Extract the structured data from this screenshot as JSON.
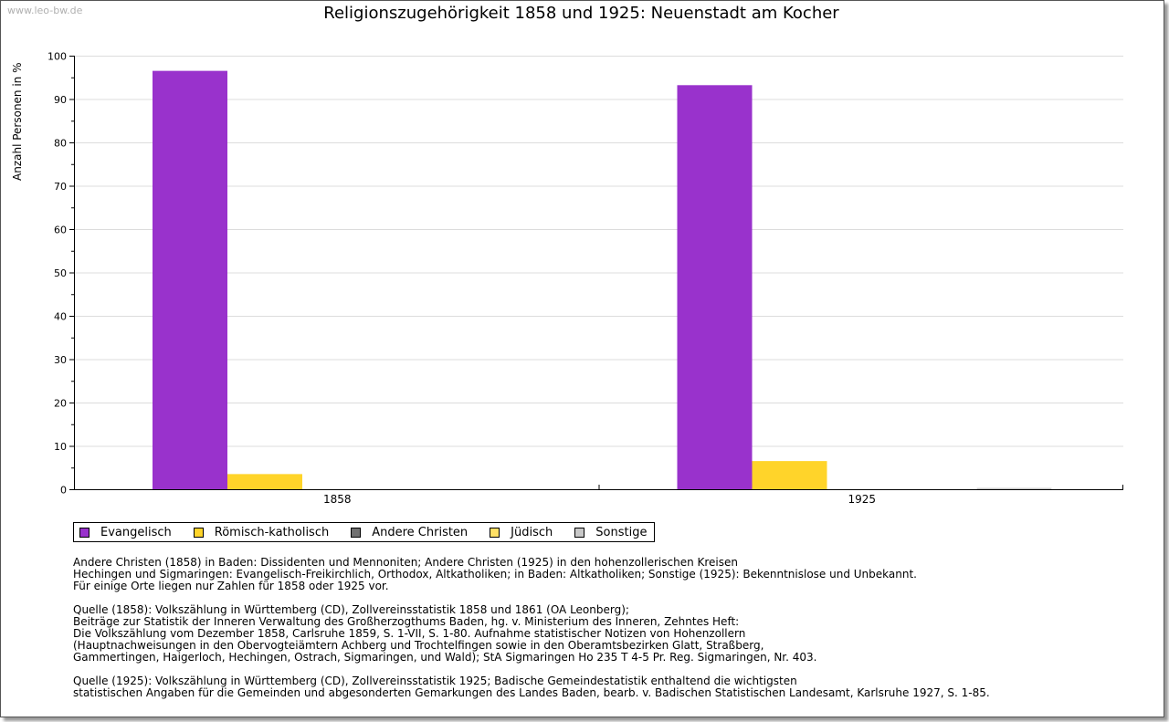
{
  "watermark": "www.leo-bw.de",
  "chart_data": {
    "type": "bar",
    "title": "Religionszugehörigkeit 1858 und 1925: Neuenstadt am Kocher",
    "xlabel": "",
    "ylabel": "Anzahl Personen in %",
    "ylim": [
      0,
      100
    ],
    "yticks": [
      0,
      10,
      20,
      30,
      40,
      50,
      60,
      70,
      80,
      90,
      100
    ],
    "categories": [
      "1858",
      "1925"
    ],
    "grid": true,
    "legend_position": "bottom",
    "series": [
      {
        "name": "Evangelisch",
        "color": "#9932cc",
        "values": [
          96.5,
          93.2
        ]
      },
      {
        "name": "Römisch-katholisch",
        "color": "#ffd42a",
        "values": [
          3.5,
          6.5
        ]
      },
      {
        "name": "Andere Christen",
        "color": "#707070",
        "values": [
          0,
          0
        ]
      },
      {
        "name": "Jüdisch",
        "color": "#ffe066",
        "values": [
          0,
          0
        ]
      },
      {
        "name": "Sonstige",
        "color": "#c8c8c8",
        "values": [
          0,
          0.3
        ]
      }
    ]
  },
  "notes": [
    [
      "Andere Christen (1858) in Baden: Dissidenten und Mennoniten; Andere Christen (1925) in den hohenzollerischen Kreisen",
      "Hechingen und Sigmaringen: Evangelisch-Freikirchlich, Orthodox, Altkatholiken; in Baden: Altkatholiken; Sonstige (1925): Bekenntnislose und Unbekannt.",
      "Für einige Orte liegen nur Zahlen für 1858 oder 1925 vor."
    ],
    [
      "Quelle (1858): Volkszählung in Württemberg (CD), Zollvereinsstatistik 1858 und 1861 (OA Leonberg);",
      "Beiträge zur Statistik der Inneren Verwaltung des Großherzogthums Baden, hg. v. Ministerium des Inneren, Zehntes Heft:",
      "Die Volkszählung vom Dezember 1858, Carlsruhe 1859, S. 1-VII, S. 1-80. Aufnahme statistischer Notizen von Hohenzollern",
      "(Hauptnachweisungen in den Obervogteiämtern Achberg und Trochtelfingen sowie in den Oberamtsbezirken Glatt, Straßberg,",
      "Gammertingen, Haigerloch, Hechingen, Ostrach, Sigmaringen, und Wald); StA Sigmaringen Ho 235 T 4-5 Pr. Reg. Sigmaringen, Nr. 403."
    ],
    [
      "Quelle (1925): Volkszählung in Württemberg (CD), Zollvereinsstatistik 1925; Badische Gemeindestatistik enthaltend die wichtigsten",
      "statistischen Angaben für die Gemeinden und abgesonderten Gemarkungen des Landes Baden, bearb. v. Badischen Statistischen Landesamt, Karlsruhe 1927, S. 1-85."
    ]
  ]
}
